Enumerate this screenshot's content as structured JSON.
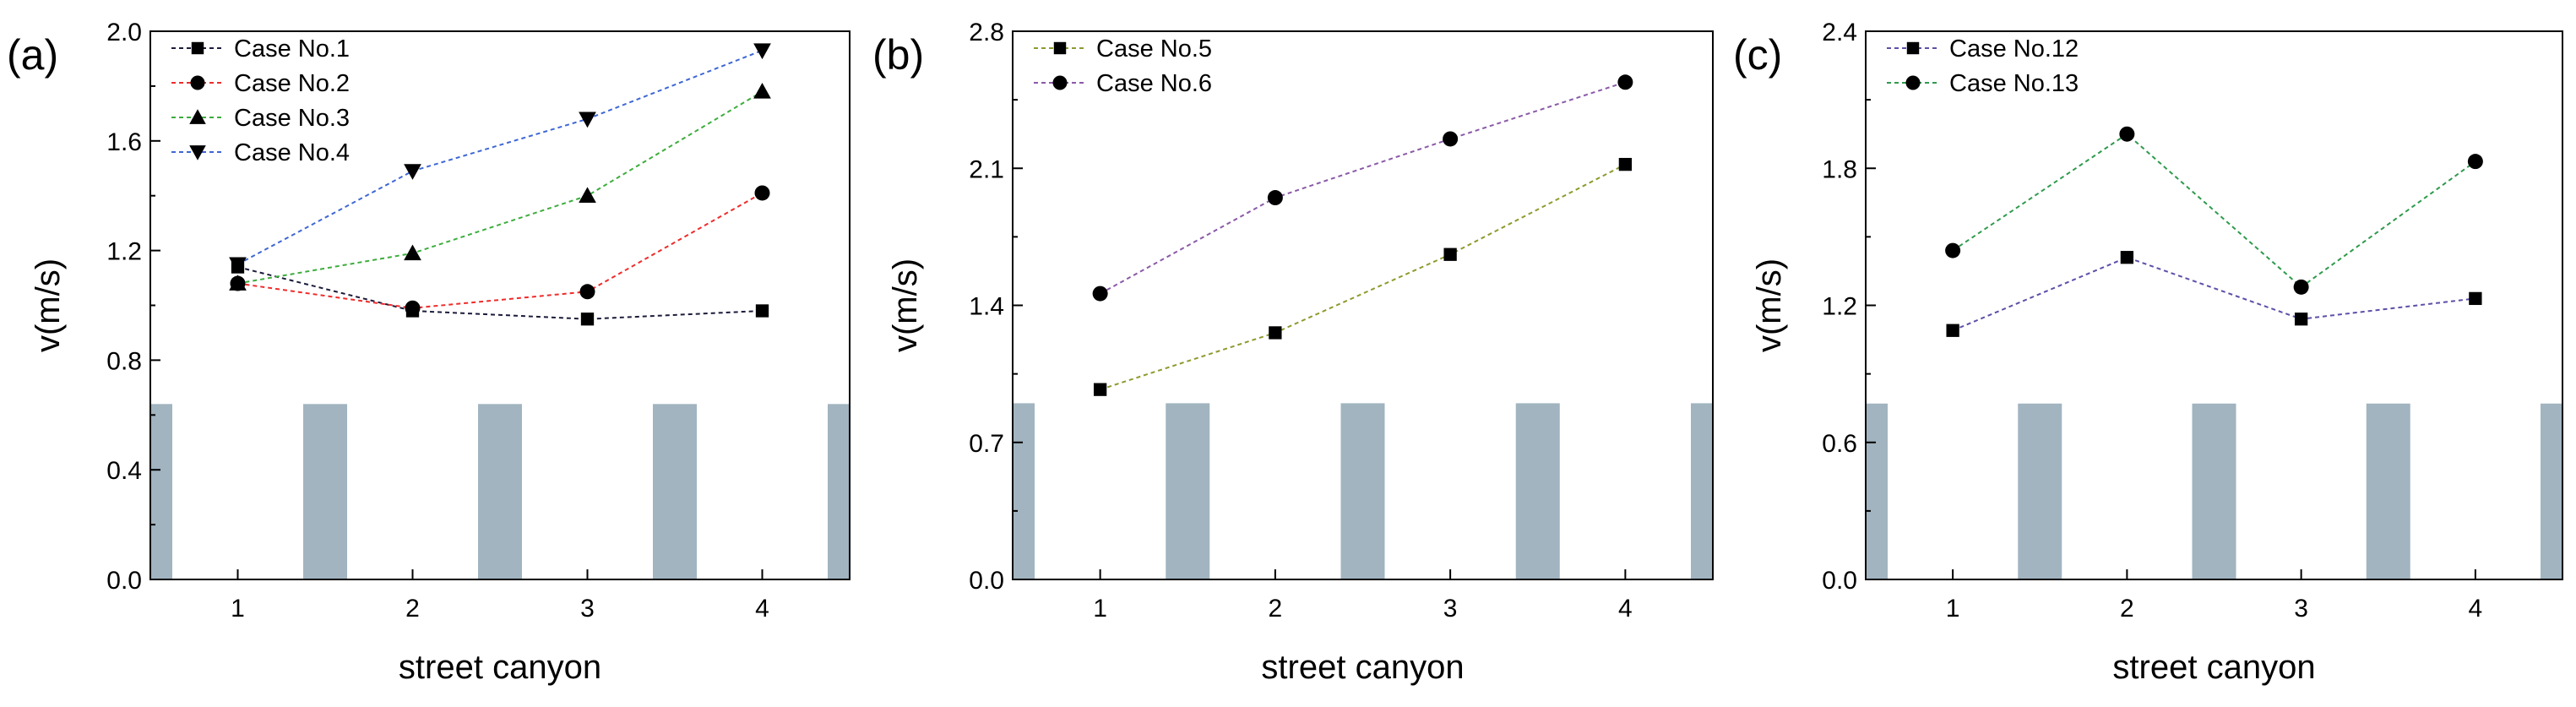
{
  "chart_data": [
    {
      "type": "line",
      "panel_label": "(a)",
      "xlabel": "street canyon",
      "ylabel": "v(m/s)",
      "categories": [
        1,
        2,
        3,
        4
      ],
      "xticks": [
        "1",
        "2",
        "3",
        "4"
      ],
      "ylim": [
        0.0,
        2.0
      ],
      "yticks": [
        "0.0",
        "0.4",
        "0.8",
        "1.2",
        "1.6",
        "2.0"
      ],
      "legend_position": "top-left",
      "buildings": {
        "height": 0.64,
        "color": "#a1b4c0"
      },
      "series": [
        {
          "name": "Case No.1",
          "marker": "square",
          "color": "#1b1b3a",
          "values": [
            1.14,
            0.98,
            0.95,
            0.98
          ]
        },
        {
          "name": "Case No.2",
          "marker": "circle",
          "color": "#ef2b2b",
          "values": [
            1.08,
            0.99,
            1.05,
            1.41
          ]
        },
        {
          "name": "Case No.3",
          "marker": "triangle-up",
          "color": "#3dad3d",
          "values": [
            1.08,
            1.19,
            1.4,
            1.78
          ]
        },
        {
          "name": "Case No.4",
          "marker": "triangle-down",
          "color": "#3f67d4",
          "values": [
            1.15,
            1.49,
            1.68,
            1.93
          ]
        }
      ]
    },
    {
      "type": "line",
      "panel_label": "(b)",
      "xlabel": "street canyon",
      "ylabel": "v(m/s)",
      "categories": [
        1,
        2,
        3,
        4
      ],
      "xticks": [
        "1",
        "2",
        "3",
        "4"
      ],
      "ylim": [
        0.0,
        2.8
      ],
      "yticks": [
        "0.0",
        "0.7",
        "1.4",
        "2.1",
        "2.8"
      ],
      "legend_position": "top-left",
      "buildings": {
        "height": 0.9,
        "color": "#a1b4c0"
      },
      "series": [
        {
          "name": "Case No.5",
          "marker": "square",
          "color": "#8f9a2e",
          "values": [
            0.97,
            1.26,
            1.66,
            2.12
          ]
        },
        {
          "name": "Case No.6",
          "marker": "circle",
          "color": "#8a5aa8",
          "values": [
            1.46,
            1.95,
            2.25,
            2.54
          ]
        }
      ]
    },
    {
      "type": "line",
      "panel_label": "(c)",
      "xlabel": "street canyon",
      "ylabel": "v(m/s)",
      "categories": [
        1,
        2,
        3,
        4
      ],
      "xticks": [
        "1",
        "2",
        "3",
        "4"
      ],
      "ylim": [
        0.0,
        2.4
      ],
      "yticks": [
        "0.0",
        "0.6",
        "1.2",
        "1.8",
        "2.4"
      ],
      "legend_position": "top-left",
      "buildings": {
        "height": 0.77,
        "color": "#a1b4c0"
      },
      "series": [
        {
          "name": "Case No.12",
          "marker": "square",
          "color": "#5c4fa8",
          "values": [
            1.09,
            1.41,
            1.14,
            1.23
          ]
        },
        {
          "name": "Case No.13",
          "marker": "circle",
          "color": "#2e9a4c",
          "values": [
            1.44,
            1.95,
            1.28,
            1.83
          ]
        }
      ]
    }
  ]
}
